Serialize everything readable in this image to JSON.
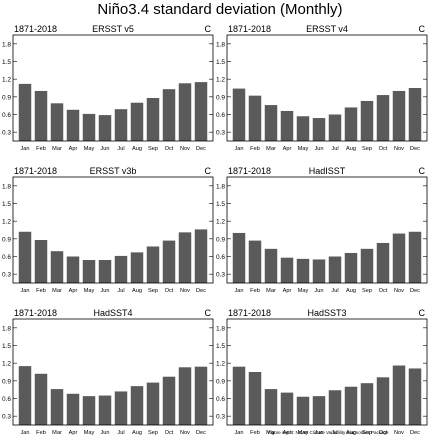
{
  "figure": {
    "title": "Niño3.4 standard deviation (Monthly)",
    "credit": "Figure credit: NCAR Climate Variability Diagnostics Package"
  },
  "colors": {
    "bar": "#5a5a5a",
    "axis": "#000000"
  },
  "chart_data": [
    {
      "type": "bar",
      "period": "1871-2018",
      "dataset": "ERSST v5",
      "units": "C",
      "categories": [
        "Jan",
        "Feb",
        "Mar",
        "Apr",
        "May",
        "Jun",
        "Jul",
        "Aug",
        "Sep",
        "Oct",
        "Nov",
        "Dec"
      ],
      "values": [
        1.12,
        1.0,
        0.79,
        0.68,
        0.61,
        0.59,
        0.69,
        0.8,
        0.88,
        1.03,
        1.13,
        1.15
      ],
      "yticks": [
        0.3,
        0.6,
        0.9,
        1.2,
        1.5,
        1.8
      ],
      "ylim": [
        0.15,
        1.95
      ]
    },
    {
      "type": "bar",
      "period": "1871-2018",
      "dataset": "ERSST v4",
      "units": "C",
      "categories": [
        "Jan",
        "Feb",
        "Mar",
        "Apr",
        "May",
        "Jun",
        "Jul",
        "Aug",
        "Sep",
        "Oct",
        "Nov",
        "Dec"
      ],
      "values": [
        1.04,
        0.92,
        0.76,
        0.66,
        0.57,
        0.54,
        0.6,
        0.72,
        0.83,
        0.93,
        1.0,
        1.05
      ],
      "yticks": [
        0.3,
        0.6,
        0.9,
        1.2,
        1.5,
        1.8
      ],
      "ylim": [
        0.15,
        1.95
      ]
    },
    {
      "type": "bar",
      "period": "1871-2018",
      "dataset": "ERSST v3b",
      "units": "C",
      "categories": [
        "Jan",
        "Feb",
        "Mar",
        "Apr",
        "May",
        "Jun",
        "Jul",
        "Aug",
        "Sep",
        "Oct",
        "Nov",
        "Dec"
      ],
      "values": [
        1.02,
        0.88,
        0.69,
        0.6,
        0.54,
        0.54,
        0.61,
        0.67,
        0.77,
        0.87,
        1.01,
        1.06
      ],
      "yticks": [
        0.3,
        0.6,
        0.9,
        1.2,
        1.5,
        1.8
      ],
      "ylim": [
        0.15,
        1.95
      ]
    },
    {
      "type": "bar",
      "period": "1871-2018",
      "dataset": "HadISST",
      "units": "C",
      "categories": [
        "Jan",
        "Feb",
        "Mar",
        "Apr",
        "May",
        "Jun",
        "Jul",
        "Aug",
        "Sep",
        "Oct",
        "Nov",
        "Dec"
      ],
      "values": [
        1.0,
        0.87,
        0.73,
        0.58,
        0.56,
        0.55,
        0.6,
        0.66,
        0.73,
        0.83,
        0.99,
        1.02
      ],
      "yticks": [
        0.3,
        0.6,
        0.9,
        1.2,
        1.5,
        1.8
      ],
      "ylim": [
        0.15,
        1.95
      ]
    },
    {
      "type": "bar",
      "period": "1871-2018",
      "dataset": "HadSST4",
      "units": "C",
      "categories": [
        "Jan",
        "Feb",
        "Mar",
        "Apr",
        "May",
        "Jun",
        "Jul",
        "Aug",
        "Sep",
        "Oct",
        "Nov",
        "Dec"
      ],
      "values": [
        1.15,
        1.02,
        0.76,
        0.68,
        0.64,
        0.65,
        0.72,
        0.81,
        0.87,
        0.97,
        1.13,
        1.14
      ],
      "yticks": [
        0.3,
        0.6,
        0.9,
        1.2,
        1.5,
        1.8
      ],
      "ylim": [
        0.15,
        1.95
      ]
    },
    {
      "type": "bar",
      "period": "1871-2018",
      "dataset": "HadSST3",
      "units": "C",
      "categories": [
        "Jan",
        "Feb",
        "Mar",
        "Apr",
        "May",
        "Jun",
        "Jul",
        "Aug",
        "Sep",
        "Oct",
        "Nov",
        "Dec"
      ],
      "values": [
        1.14,
        1.05,
        0.76,
        0.7,
        0.63,
        0.64,
        0.74,
        0.8,
        0.86,
        0.96,
        1.16,
        1.11
      ],
      "yticks": [
        0.3,
        0.6,
        0.9,
        1.2,
        1.5,
        1.8
      ],
      "ylim": [
        0.15,
        1.95
      ]
    }
  ]
}
